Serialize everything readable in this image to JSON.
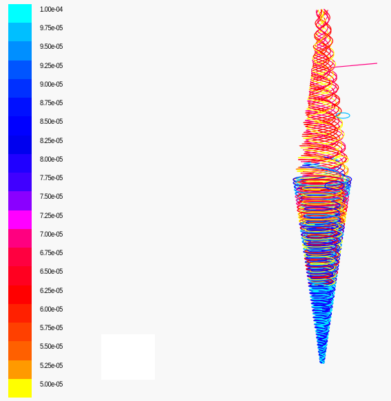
{
  "colorbar": {
    "labels": [
      "1.00e-04",
      "9.75e-05",
      "9.50e-05",
      "9.25e-05",
      "9.00e-05",
      "8.75e-05",
      "8.50e-05",
      "8.25e-05",
      "8.00e-05",
      "7.75e-05",
      "7.50e-05",
      "7.25e-05",
      "7.00e-05",
      "6.75e-05",
      "6.50e-05",
      "6.25e-05",
      "6.00e-05",
      "5.75e-05",
      "5.50e-05",
      "5.25e-05",
      "5.00e-05"
    ],
    "colors": [
      "#00ffff",
      "#00bfff",
      "#008fff",
      "#0055ff",
      "#0030ff",
      "#0010ff",
      "#0000ff",
      "#0000ee",
      "#2000ff",
      "#4000ff",
      "#8a00ff",
      "#ff00ff",
      "#ff0080",
      "#ff0040",
      "#ff0020",
      "#ff0000",
      "#ff2000",
      "#ff4000",
      "#ff6000",
      "#ff9a00",
      "#ffff00"
    ]
  },
  "particle_tracks": {
    "description_colors": [
      "#ff0000",
      "#ff0080",
      "#ffff00",
      "#0000ff",
      "#00bfff",
      "#00ffff",
      "#ff6000",
      "#2000ff"
    ]
  }
}
